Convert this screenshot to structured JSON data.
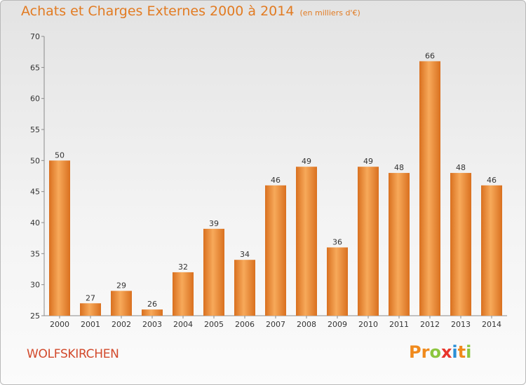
{
  "header": {
    "title": "Achats et Charges Externes 2000 à 2014",
    "unit": "(en milliers d'€)"
  },
  "footer": {
    "commune": "WOLFSKIRCHEN",
    "logo_letters": [
      "P",
      "r",
      "o",
      "x",
      "i",
      "t",
      "i"
    ],
    "logo_colors": [
      "#f08a1c",
      "#f08a1c",
      "#8cc63f",
      "#e8352b",
      "#2a8fd6",
      "#f08a1c",
      "#8cc63f"
    ]
  },
  "colors": {
    "bar_light": "#f7a95a",
    "bar_dark": "#d9701f",
    "accent": "#e27b22"
  },
  "chart_data": {
    "type": "bar",
    "categories": [
      "2000",
      "2001",
      "2002",
      "2003",
      "2004",
      "2005",
      "2006",
      "2007",
      "2008",
      "2009",
      "2010",
      "2011",
      "2012",
      "2013",
      "2014"
    ],
    "values": [
      50,
      27,
      29,
      26,
      32,
      39,
      34,
      46,
      49,
      36,
      49,
      48,
      66,
      48,
      46
    ],
    "ylim": [
      25,
      70
    ],
    "yticks": [
      25,
      30,
      35,
      40,
      45,
      50,
      55,
      60,
      65,
      70
    ],
    "grid": false
  }
}
